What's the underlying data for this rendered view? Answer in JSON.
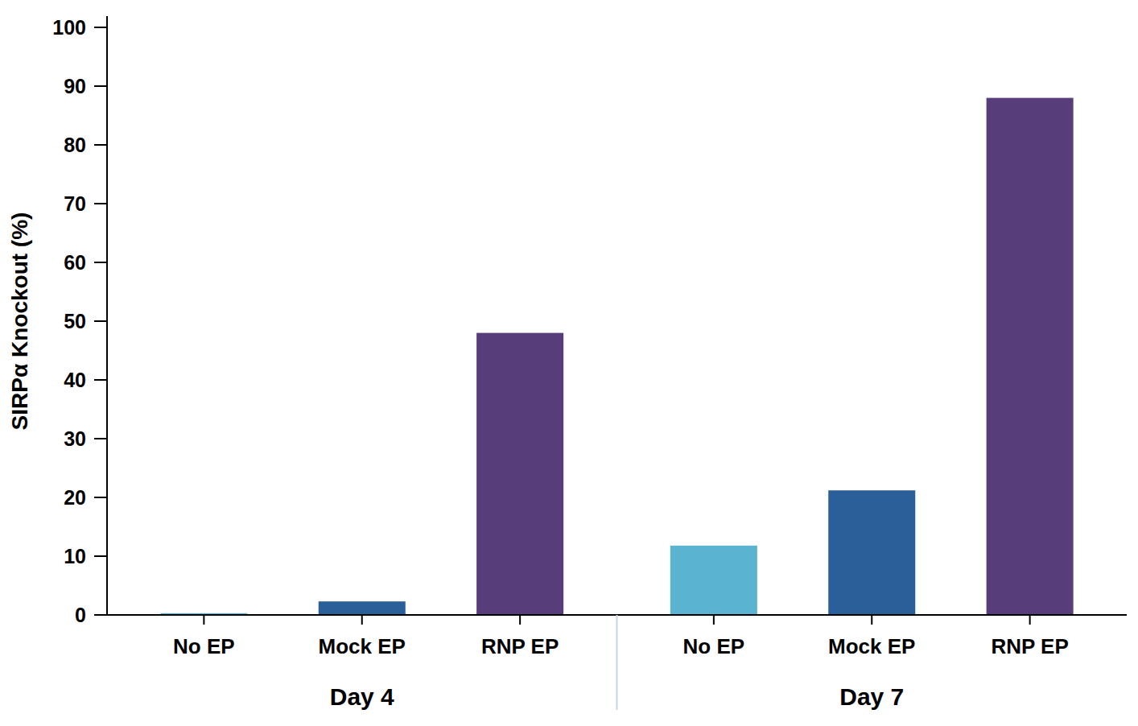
{
  "chart_data": {
    "type": "bar",
    "y_label": "SIRPα Knockout (%)",
    "categories": [
      "No EP",
      "Mock EP",
      "RNP EP",
      "No EP",
      "Mock EP",
      "RNP EP"
    ],
    "group_labels": [
      "Day 4",
      "Day 7"
    ],
    "values": [
      0.3,
      2.3,
      48,
      11.8,
      21.2,
      88
    ],
    "colors": [
      "#5ab4d1",
      "#2b5f9a",
      "#573d7a",
      "#5ab4d1",
      "#2b5f9a",
      "#573d7a"
    ],
    "ylim": [
      0,
      100
    ],
    "yticks": [
      0,
      10,
      20,
      30,
      40,
      50,
      60,
      70,
      80,
      90,
      100
    ],
    "grid": false
  }
}
